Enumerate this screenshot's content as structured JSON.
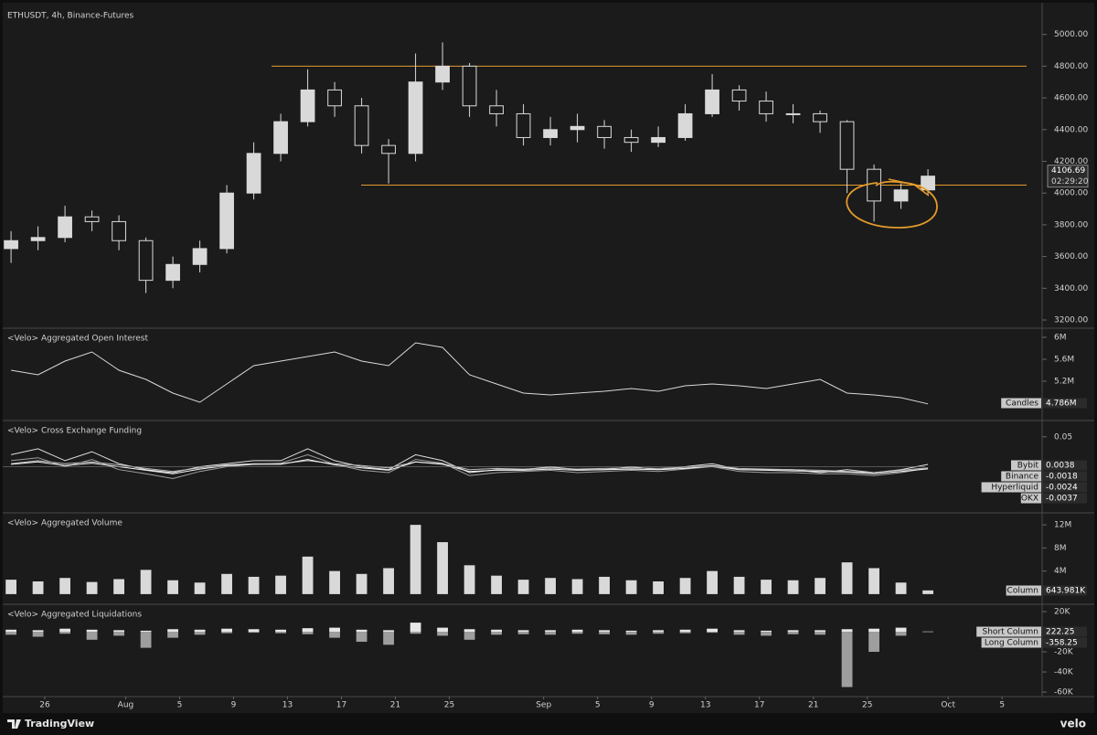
{
  "chart_data": [
    {
      "type": "candlestick",
      "title": "ETHUSDT, 4h, Binance-Futures",
      "color": "#d9d9d9",
      "x": [
        204.5,
        206.5,
        208.5,
        210.5,
        212.5,
        214.5,
        216.5,
        218.5,
        220.5,
        222.5,
        224.5,
        226.5,
        228.5,
        230.5,
        232.5,
        234.5,
        236.5,
        238.5,
        240.5,
        242.5,
        244.5,
        246.5,
        248.5,
        250.5,
        252.5,
        254.5,
        256.5,
        258.5,
        260.5,
        262.5,
        264.5,
        266.5,
        268.5,
        270.5,
        272.5
      ],
      "ohlc": [
        [
          3650,
          3760,
          3560,
          3700
        ],
        [
          3700,
          3790,
          3640,
          3720
        ],
        [
          3720,
          3920,
          3690,
          3850
        ],
        [
          3850,
          3890,
          3760,
          3820
        ],
        [
          3820,
          3860,
          3640,
          3700
        ],
        [
          3700,
          3720,
          3370,
          3450
        ],
        [
          3450,
          3600,
          3400,
          3550
        ],
        [
          3550,
          3700,
          3500,
          3650
        ],
        [
          3650,
          4050,
          3620,
          4000
        ],
        [
          4000,
          4320,
          3960,
          4250
        ],
        [
          4250,
          4500,
          4200,
          4450
        ],
        [
          4450,
          4780,
          4420,
          4650
        ],
        [
          4650,
          4700,
          4480,
          4550
        ],
        [
          4550,
          4600,
          4250,
          4300
        ],
        [
          4300,
          4340,
          4060,
          4250
        ],
        [
          4250,
          4880,
          4200,
          4700
        ],
        [
          4700,
          4950,
          4650,
          4800
        ],
        [
          4800,
          4820,
          4480,
          4550
        ],
        [
          4550,
          4650,
          4420,
          4500
        ],
        [
          4500,
          4560,
          4300,
          4350
        ],
        [
          4350,
          4480,
          4300,
          4400
        ],
        [
          4400,
          4500,
          4320,
          4420
        ],
        [
          4420,
          4460,
          4280,
          4350
        ],
        [
          4350,
          4400,
          4260,
          4320
        ],
        [
          4320,
          4420,
          4290,
          4350
        ],
        [
          4350,
          4560,
          4330,
          4500
        ],
        [
          4500,
          4750,
          4480,
          4650
        ],
        [
          4650,
          4680,
          4520,
          4580
        ],
        [
          4580,
          4640,
          4450,
          4500
        ],
        [
          4500,
          4560,
          4440,
          4500
        ],
        [
          4500,
          4520,
          4380,
          4450
        ],
        [
          4450,
          4460,
          4000,
          4150
        ],
        [
          4150,
          4180,
          3820,
          3950
        ],
        [
          3950,
          4060,
          3900,
          4020
        ],
        [
          4020,
          4150,
          3990,
          4106.69
        ]
      ],
      "countdown": "02:29:20",
      "levels": [
        4800,
        4050
      ],
      "level_color": "#e39b2b",
      "ylim": [
        3154,
        5171
      ],
      "yticks": [
        {
          "value": 3200,
          "label": "3200.00"
        },
        {
          "value": 3400,
          "label": "3400.00"
        },
        {
          "value": 3600,
          "label": "3600.00"
        },
        {
          "value": 3800,
          "label": "3800.00"
        },
        {
          "value": 4000,
          "label": "4000.00"
        },
        {
          "value": 4200,
          "label": "4200.00"
        },
        {
          "value": 4400,
          "label": "4400.00"
        },
        {
          "value": 4600,
          "label": "4600.00"
        },
        {
          "value": 4800,
          "label": "4800.00"
        },
        {
          "value": 5000,
          "label": "5000.00"
        }
      ]
    },
    {
      "type": "line",
      "title": "<Velo> Aggregated Open Interest",
      "x": [
        204.5,
        206.5,
        208.5,
        210.5,
        212.5,
        214.5,
        216.5,
        218.5,
        220.5,
        222.5,
        224.5,
        226.5,
        228.5,
        230.5,
        232.5,
        234.5,
        236.5,
        238.5,
        240.5,
        242.5,
        244.5,
        246.5,
        248.5,
        250.5,
        252.5,
        254.5,
        256.5,
        258.5,
        260.5,
        262.5,
        264.5,
        266.5,
        268.5,
        270.5,
        272.5
      ],
      "series": [
        {
          "name": "Candles",
          "color": "#d9d9d9",
          "last_label": "4.786M",
          "values": [
            5400000,
            5317000,
            5567000,
            5733000,
            5400000,
            5233000,
            4983000,
            4817000,
            5150000,
            5483000,
            5567000,
            5650000,
            5733000,
            5567000,
            5483000,
            5900000,
            5817000,
            5317000,
            5150000,
            4983000,
            4950000,
            4983000,
            5017000,
            5067000,
            5017000,
            5117000,
            5150000,
            5117000,
            5067000,
            5150000,
            5233000,
            4983000,
            4950000,
            4900000,
            4786000
          ]
        }
      ],
      "ylim": [
        4500000,
        6133000
      ],
      "yticks": [
        {
          "value": 5200000,
          "label": "5.2M"
        },
        {
          "value": 5600000,
          "label": "5.6M"
        },
        {
          "value": 6000000,
          "label": "6M"
        }
      ]
    },
    {
      "type": "line",
      "title": "<Velo> Cross Exchange Funding",
      "x": [
        204.5,
        206.5,
        208.5,
        210.5,
        212.5,
        214.5,
        216.5,
        218.5,
        220.5,
        222.5,
        224.5,
        226.5,
        228.5,
        230.5,
        232.5,
        234.5,
        236.5,
        238.5,
        240.5,
        242.5,
        244.5,
        246.5,
        248.5,
        250.5,
        252.5,
        254.5,
        256.5,
        258.5,
        260.5,
        262.5,
        264.5,
        266.5,
        268.5,
        270.5,
        272.5
      ],
      "series": [
        {
          "name": "Bybit",
          "color": "#e0e0e0",
          "values": [
            0.02,
            0.03,
            0.01,
            0.025,
            0.005,
            -0.005,
            -0.01,
            0,
            0.005,
            0.01,
            0.01,
            0.03,
            0.01,
            0,
            -0.005,
            0.02,
            0.01,
            -0.01,
            -0.005,
            -0.005,
            0,
            -0.005,
            -0.005,
            0,
            -0.005,
            0,
            0.005,
            -0.005,
            -0.005,
            -0.005,
            -0.01,
            -0.005,
            -0.01,
            -0.005,
            0.0038
          ]
        },
        {
          "name": "Binance",
          "color": "#bdbdbd",
          "values": [
            0.005,
            0.01,
            0.005,
            0.008,
            0.003,
            -0.003,
            -0.008,
            -0.002,
            0.003,
            0.005,
            0.005,
            0.01,
            0.005,
            0.002,
            -0.002,
            0.008,
            0.005,
            -0.005,
            -0.003,
            -0.004,
            -0.002,
            -0.004,
            -0.003,
            -0.002,
            -0.003,
            -0.001,
            0.002,
            -0.003,
            -0.004,
            -0.005,
            -0.006,
            -0.008,
            -0.01,
            -0.006,
            -0.0018
          ]
        },
        {
          "name": "Hyperliquid",
          "color": "#9e9e9e",
          "values": [
            0.01,
            0.015,
            0,
            0.012,
            -0.005,
            -0.012,
            -0.02,
            -0.008,
            0,
            0.004,
            0.006,
            0.02,
            0.004,
            -0.006,
            -0.01,
            0.012,
            0.006,
            -0.015,
            -0.01,
            -0.008,
            -0.006,
            -0.01,
            -0.008,
            -0.006,
            -0.008,
            -0.004,
            0,
            -0.008,
            -0.01,
            -0.01,
            -0.012,
            -0.012,
            -0.015,
            -0.01,
            -0.0024
          ]
        },
        {
          "name": "OKX",
          "color": "#f5f5f5",
          "values": [
            0.004,
            0.008,
            0.002,
            0.006,
            0,
            -0.006,
            -0.012,
            -0.004,
            0.002,
            0.004,
            0.004,
            0.012,
            0.003,
            -0.002,
            -0.006,
            0.008,
            0.004,
            -0.008,
            -0.006,
            -0.006,
            -0.004,
            -0.006,
            -0.005,
            -0.004,
            -0.005,
            -0.003,
            0.001,
            -0.005,
            -0.006,
            -0.007,
            -0.008,
            -0.009,
            -0.012,
            -0.008,
            -0.0037
          ]
        }
      ],
      "ylim": [
        -0.0758,
        0.0742
      ],
      "yticks": [
        0.05
      ]
    },
    {
      "type": "bar",
      "title": "<Velo> Aggregated Volume",
      "x": [
        204.5,
        206.5,
        208.5,
        210.5,
        212.5,
        214.5,
        216.5,
        218.5,
        220.5,
        222.5,
        224.5,
        226.5,
        228.5,
        230.5,
        232.5,
        234.5,
        236.5,
        238.5,
        240.5,
        242.5,
        244.5,
        246.5,
        248.5,
        250.5,
        252.5,
        254.5,
        256.5,
        258.5,
        260.5,
        262.5,
        264.5,
        266.5,
        268.5,
        270.5,
        272.5
      ],
      "series": [
        {
          "name": "Column",
          "color": "#d9d9d9",
          "last_label": "643.981K",
          "values": [
            2500000,
            2200000,
            2800000,
            2100000,
            2600000,
            4200000,
            2400000,
            2000000,
            3500000,
            3000000,
            3200000,
            6500000,
            4000000,
            3500000,
            4500000,
            12000000,
            9000000,
            5000000,
            3200000,
            2500000,
            2800000,
            2600000,
            3000000,
            2400000,
            2200000,
            2800000,
            4000000,
            3000000,
            2500000,
            2400000,
            2800000,
            5500000,
            4500000,
            2000000,
            643981
          ]
        }
      ],
      "ylim": [
        -1600000,
        13760000
      ],
      "yticks": [
        {
          "value": 4000000,
          "label": "4M"
        },
        {
          "value": 8000000,
          "label": "8M"
        },
        {
          "value": 12000000,
          "label": "12M"
        }
      ]
    },
    {
      "type": "bar",
      "title": "<Velo> Aggregated Liquidations",
      "x": [
        204.5,
        206.5,
        208.5,
        210.5,
        212.5,
        214.5,
        216.5,
        218.5,
        220.5,
        222.5,
        224.5,
        226.5,
        228.5,
        230.5,
        232.5,
        234.5,
        236.5,
        238.5,
        240.5,
        242.5,
        244.5,
        246.5,
        248.5,
        250.5,
        252.5,
        254.5,
        256.5,
        258.5,
        260.5,
        262.5,
        264.5,
        266.5,
        268.5,
        270.5,
        272.5
      ],
      "series": [
        {
          "name": "Short Column",
          "color": "#e6e6e6",
          "values": [
            2000,
            1500,
            3000,
            2000,
            1500,
            1000,
            2500,
            2000,
            3000,
            2500,
            2000,
            3500,
            4000,
            2000,
            1500,
            9000,
            4000,
            2500,
            2000,
            1500,
            1500,
            2000,
            1500,
            1000,
            1500,
            2000,
            3000,
            1500,
            1000,
            1500,
            1500,
            2500,
            3000,
            4000,
            222.25
          ]
        },
        {
          "name": "Long Column",
          "color": "#9e9e9e",
          "values": [
            -3000,
            -5000,
            -2000,
            -8000,
            -4000,
            -16000,
            -6000,
            -3000,
            -1500,
            -1000,
            -1500,
            -2500,
            -6000,
            -10000,
            -13000,
            -2000,
            -4000,
            -8000,
            -3000,
            -2500,
            -3000,
            -2000,
            -2500,
            -3000,
            -2000,
            -1500,
            -1000,
            -3000,
            -4000,
            -2500,
            -3000,
            -55000,
            -20000,
            -4000,
            -358.25
          ]
        }
      ],
      "ylim": [
        -64500,
        25450
      ],
      "yticks": [
        {
          "value": 20000,
          "label": "20K"
        },
        {
          "value": -20000,
          "label": "-20K"
        },
        {
          "value": -40000,
          "label": "-40K"
        },
        {
          "value": -60000,
          "label": "-60K"
        }
      ],
      "xlim": [
        203.68,
        280.97
      ],
      "xticks": [
        {
          "value": 207,
          "label": "26"
        },
        {
          "value": 213,
          "label": "Aug"
        },
        {
          "value": 217,
          "label": "5"
        },
        {
          "value": 221,
          "label": "9"
        },
        {
          "value": 225,
          "label": "13"
        },
        {
          "value": 229,
          "label": "17"
        },
        {
          "value": 233,
          "label": "21"
        },
        {
          "value": 237,
          "label": "25"
        },
        {
          "value": 244,
          "label": "Sep"
        },
        {
          "value": 248,
          "label": "5"
        },
        {
          "value": 252,
          "label": "9"
        },
        {
          "value": 256,
          "label": "13"
        },
        {
          "value": 260,
          "label": "17"
        },
        {
          "value": 264,
          "label": "21"
        },
        {
          "value": 268,
          "label": "25"
        },
        {
          "value": 274,
          "label": "Oct"
        },
        {
          "value": 278,
          "label": "5"
        }
      ]
    }
  ],
  "footer": {
    "brand": "TradingView",
    "source": "velo"
  }
}
